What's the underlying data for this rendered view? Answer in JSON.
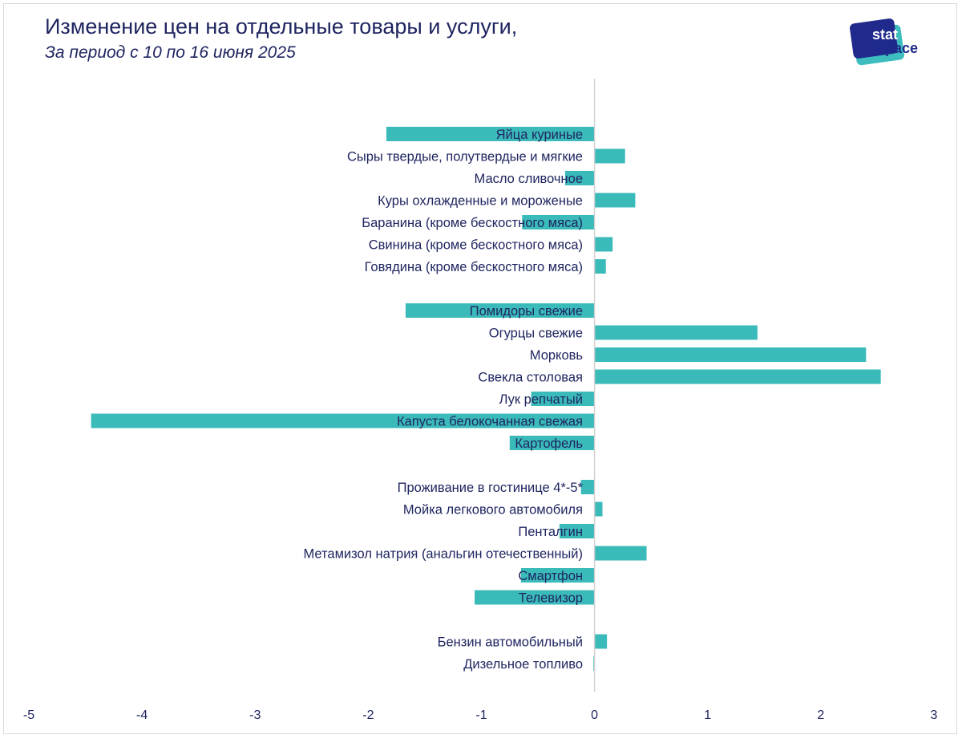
{
  "header": {
    "title": "Изменение цен на отдельные товары и услуги,",
    "subtitle": "За период с 10 по 16 июня 2025"
  },
  "logo": {
    "line1": "stat",
    "line2": "space",
    "color_dark": "#1f2a8c",
    "color_teal": "#3dbdbd"
  },
  "chart_data": {
    "type": "bar",
    "orientation": "horizontal",
    "bar_color": "#3bbaba",
    "xlim": [
      -5,
      3
    ],
    "x_ticks": [
      "-5",
      "-4",
      "-3",
      "-2",
      "-1",
      "0",
      "1",
      "2",
      "3"
    ],
    "grid": false,
    "categories": [
      "Яйца куриные",
      "Сыры твердые, полутвердые и мягкие",
      "Масло сливочное",
      "Куры охлажденные и мороженые",
      "Баранина (кроме бескостного мяса)",
      "Свинина (кроме бескостного мяса)",
      "Говядина (кроме бескостного мяса)",
      "",
      "Помидоры свежие",
      "Огурцы свежие",
      "Морковь",
      "Свекла столовая",
      "Лук репчатый",
      "Капуста белокочанная свежая",
      "Картофель",
      "",
      "Проживание в гостинице 4*-5*",
      "Мойка легкового автомобиля",
      "Пенталгин",
      "Метамизол натрия (анальгин отечественный)",
      "Смартфон",
      "Телевизор",
      "",
      "Бензин автомобильный",
      "Дизельное топливо"
    ],
    "values": [
      -1.84,
      0.27,
      -0.26,
      0.36,
      -0.64,
      0.16,
      0.1,
      null,
      -1.67,
      1.44,
      2.4,
      2.53,
      -0.56,
      -4.45,
      -0.75,
      null,
      -0.12,
      0.07,
      -0.31,
      0.46,
      -0.65,
      -1.06,
      null,
      0.11,
      -0.01
    ]
  }
}
